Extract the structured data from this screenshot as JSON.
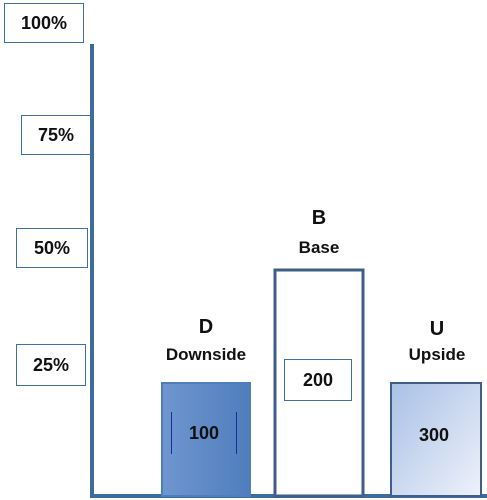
{
  "chart_data": {
    "type": "bar",
    "categories": [
      "D",
      "B",
      "U"
    ],
    "category_names": [
      "Downside",
      "Base",
      "Upside"
    ],
    "values": [
      25,
      50,
      25
    ],
    "data_labels": [
      "100",
      "200",
      "300"
    ],
    "y_ticks": [
      "25%",
      "50%",
      "75%",
      "100%"
    ],
    "ylim": [
      0,
      100
    ],
    "grid": false,
    "colors": {
      "axis": "#3d6c9c",
      "D": "#4f7dbd",
      "B": "#ffffff",
      "U": "#c9d7ef",
      "edge": "#3f5f86"
    }
  }
}
